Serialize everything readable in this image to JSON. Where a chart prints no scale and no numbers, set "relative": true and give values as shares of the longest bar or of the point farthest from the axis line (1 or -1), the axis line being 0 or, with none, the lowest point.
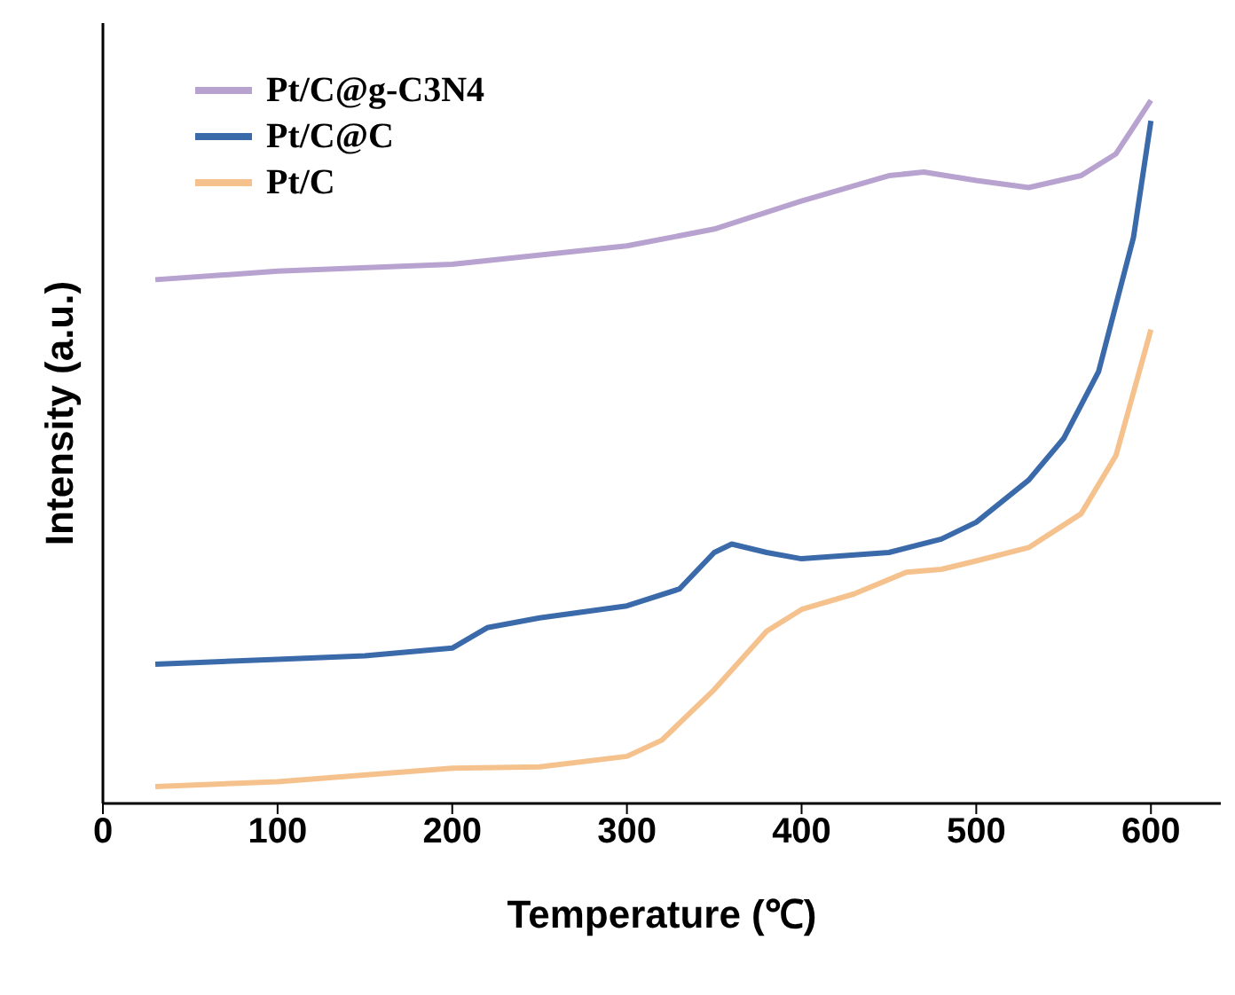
{
  "chart_data": {
    "type": "line",
    "xlabel": "Temperature (℃)",
    "ylabel": "Intensity (a.u.)",
    "relative": true,
    "xlim": [
      0,
      640
    ],
    "xticks": [
      0,
      100,
      200,
      300,
      400,
      500,
      600
    ],
    "legend": "top left",
    "grid": false,
    "marker": "none",
    "line_style": "solid",
    "series": [
      {
        "name": "Pt/C@g-C3N4",
        "color": "#b8a2cf",
        "x": [
          30,
          100,
          200,
          300,
          350,
          400,
          450,
          470,
          500,
          530,
          560,
          580,
          600
        ],
        "values": [
          0.745,
          0.757,
          0.767,
          0.793,
          0.817,
          0.857,
          0.893,
          0.898,
          0.886,
          0.876,
          0.893,
          0.924,
          1
        ]
      },
      {
        "name": "Pt/C@C",
        "color": "#3b6aaa",
        "x": [
          30,
          100,
          150,
          200,
          220,
          250,
          300,
          330,
          350,
          360,
          380,
          400,
          450,
          480,
          500,
          530,
          550,
          570,
          590,
          600
        ],
        "values": [
          0.198,
          0.205,
          0.21,
          0.221,
          0.25,
          0.264,
          0.281,
          0.305,
          0.357,
          0.369,
          0.357,
          0.348,
          0.357,
          0.376,
          0.4,
          0.46,
          0.519,
          0.614,
          0.805,
          0.971
        ]
      },
      {
        "name": "Pt/C",
        "color": "#f5c28e",
        "x": [
          30,
          100,
          200,
          250,
          300,
          320,
          350,
          380,
          400,
          430,
          460,
          480,
          500,
          530,
          560,
          580,
          600
        ],
        "values": [
          0.024,
          0.031,
          0.05,
          0.052,
          0.067,
          0.09,
          0.162,
          0.245,
          0.276,
          0.298,
          0.329,
          0.333,
          0.345,
          0.364,
          0.412,
          0.495,
          0.674
        ]
      }
    ]
  }
}
